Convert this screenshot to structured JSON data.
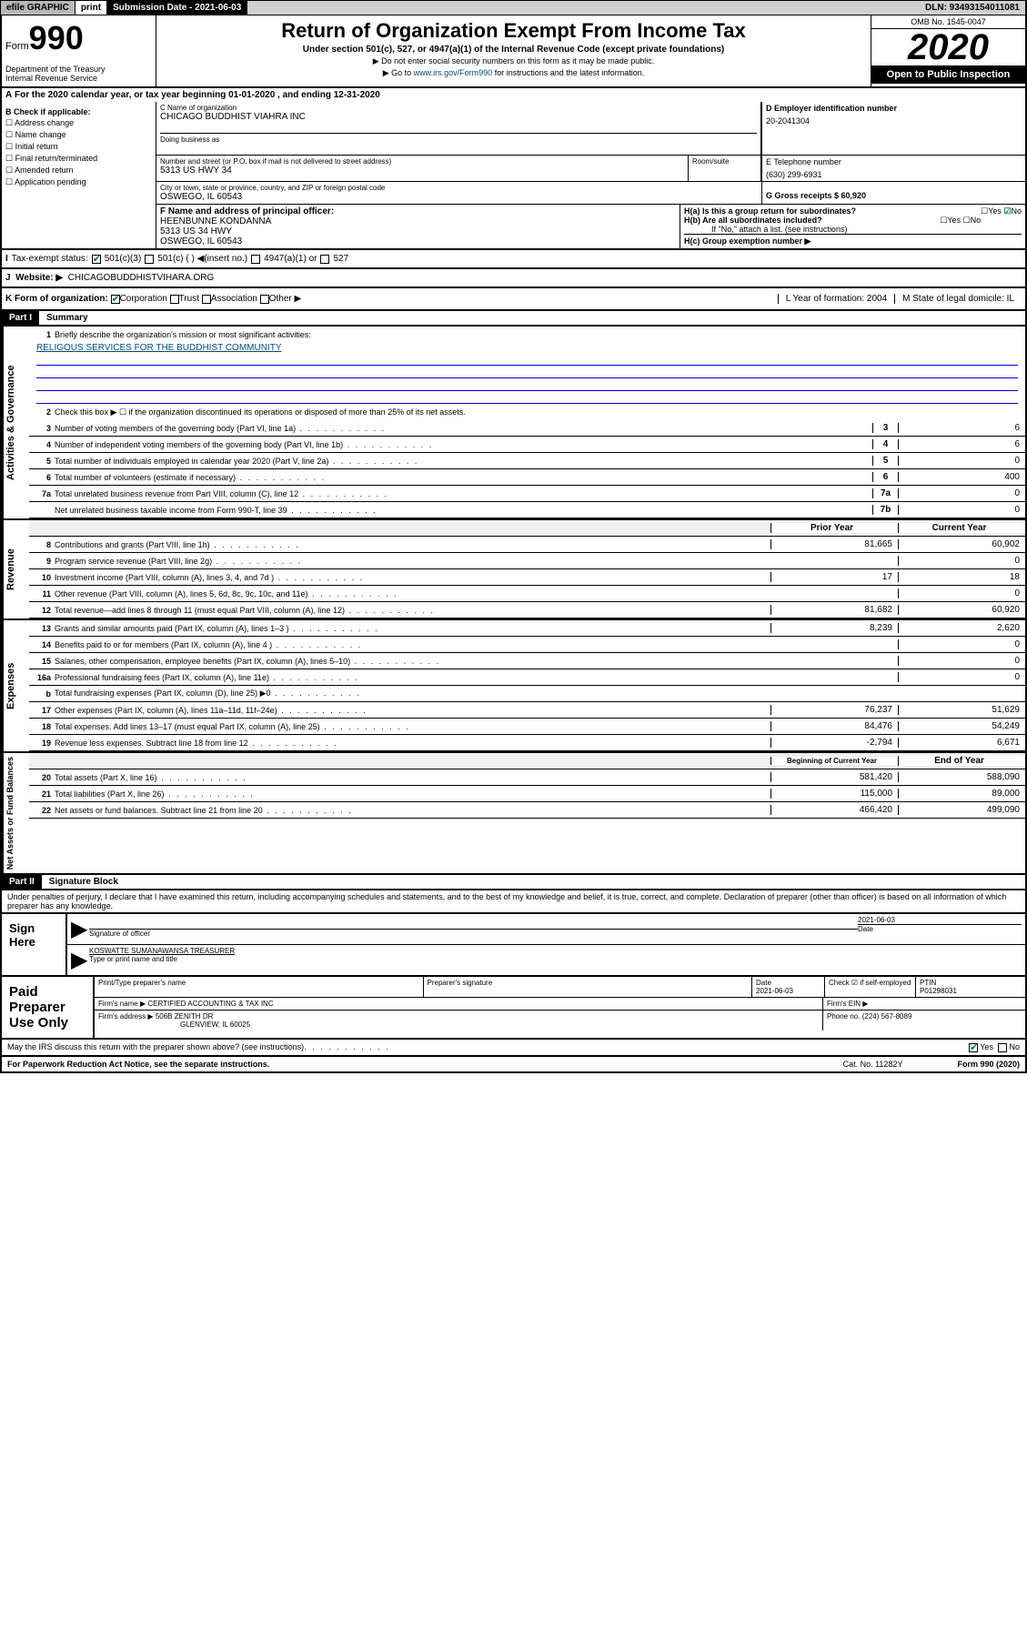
{
  "topbar": {
    "efile": "efile GRAPHIC",
    "print": "print",
    "submission": "Submission Date - 2021-06-03",
    "dln": "DLN: 93493154011081"
  },
  "header": {
    "form_label": "Form",
    "form_num": "990",
    "dept": "Department of the Treasury\nInternal Revenue Service",
    "title": "Return of Organization Exempt From Income Tax",
    "subtitle": "Under section 501(c), 527, or 4947(a)(1) of the Internal Revenue Code (except private foundations)",
    "instr1": "▶ Do not enter social security numbers on this form as it may be made public.",
    "instr2_pre": "▶ Go to ",
    "instr2_link": "www.irs.gov/Form990",
    "instr2_post": " for instructions and the latest information.",
    "omb": "OMB No. 1545-0047",
    "year": "2020",
    "open": "Open to Public Inspection"
  },
  "period": "For the 2020 calendar year, or tax year beginning 01-01-2020   , and ending 12-31-2020",
  "checkboxes": {
    "b_label": "B Check if applicable:",
    "items": [
      "Address change",
      "Name change",
      "Initial return",
      "Final return/terminated",
      "Amended return",
      "Application pending"
    ]
  },
  "entity": {
    "c_name_lbl": "C Name of organization",
    "c_name": "CHICAGO BUDDHIST VIAHRA INC",
    "dba_lbl": "Doing business as",
    "addr_lbl": "Number and street (or P.O. box if mail is not delivered to street address)",
    "addr": "5313 US HWY 34",
    "room_lbl": "Room/suite",
    "city_lbl": "City or town, state or province, country, and ZIP or foreign postal code",
    "city": "OSWEGO, IL 60543",
    "d_lbl": "D Employer identification number",
    "d_ein": "20-2041304",
    "e_lbl": "E Telephone number",
    "e_phone": "(630) 299-6931",
    "g_lbl": "G Gross receipts $ 60,920",
    "f_lbl": "F  Name and address of principal officer:",
    "f_name": "HEENBUNNE KONDANNA",
    "f_addr1": "5313 US 34 HWY",
    "f_addr2": "OSWEGO, IL  60543",
    "ha_lbl": "H(a)  Is this a group return for subordinates?",
    "hb_lbl": "H(b)  Are all subordinates included?",
    "hb_note": "If \"No,\" attach a list. (see instructions)",
    "hc_lbl": "H(c)  Group exemption number ▶"
  },
  "row_i": {
    "label": "Tax-exempt status:",
    "opts": [
      "501(c)(3)",
      "501(c) (   ) ◀(insert no.)",
      "4947(a)(1) or",
      "527"
    ]
  },
  "row_j": {
    "label": "Website: ▶",
    "value": "CHICAGOBUDDHISTVIHARA.ORG"
  },
  "row_k": {
    "label": "K Form of organization:",
    "opts": [
      "Corporation",
      "Trust",
      "Association",
      "Other ▶"
    ],
    "l_lbl": "L Year of formation: 2004",
    "m_lbl": "M State of legal domicile: IL"
  },
  "part1": {
    "hdr": "Part I",
    "title": "Summary",
    "q1": "Briefly describe the organization's mission or most significant activities:",
    "mission": "RELIGOUS SERVICES FOR THE BUDDHIST COMMUNITY",
    "q2": "Check this box ▶ ☐  if the organization discontinued its operations or disposed of more than 25% of its net assets.",
    "lines_gov": [
      {
        "n": "3",
        "d": "Number of voting members of the governing body (Part VI, line 1a)",
        "c": "3",
        "v": "6"
      },
      {
        "n": "4",
        "d": "Number of independent voting members of the governing body (Part VI, line 1b)",
        "c": "4",
        "v": "6"
      },
      {
        "n": "5",
        "d": "Total number of individuals employed in calendar year 2020 (Part V, line 2a)",
        "c": "5",
        "v": "0"
      },
      {
        "n": "6",
        "d": "Total number of volunteers (estimate if necessary)",
        "c": "6",
        "v": "400"
      },
      {
        "n": "7a",
        "d": "Total unrelated business revenue from Part VIII, column (C), line 12",
        "c": "7a",
        "v": "0"
      },
      {
        "n": "",
        "d": "Net unrelated business taxable income from Form 990-T, line 39",
        "c": "7b",
        "v": "0"
      }
    ],
    "prior_hdr": "Prior Year",
    "curr_hdr": "Current Year",
    "lines_rev": [
      {
        "n": "8",
        "d": "Contributions and grants (Part VIII, line 1h)",
        "p": "81,665",
        "c": "60,902"
      },
      {
        "n": "9",
        "d": "Program service revenue (Part VIII, line 2g)",
        "p": "",
        "c": "0"
      },
      {
        "n": "10",
        "d": "Investment income (Part VIII, column (A), lines 3, 4, and 7d )",
        "p": "17",
        "c": "18"
      },
      {
        "n": "11",
        "d": "Other revenue (Part VIII, column (A), lines 5, 6d, 8c, 9c, 10c, and 11e)",
        "p": "",
        "c": "0"
      },
      {
        "n": "12",
        "d": "Total revenue—add lines 8 through 11 (must equal Part VIII, column (A), line 12)",
        "p": "81,682",
        "c": "60,920"
      }
    ],
    "lines_exp": [
      {
        "n": "13",
        "d": "Grants and similar amounts paid (Part IX, column (A), lines 1–3 )",
        "p": "8,239",
        "c": "2,620"
      },
      {
        "n": "14",
        "d": "Benefits paid to or for members (Part IX, column (A), line 4 )",
        "p": "",
        "c": "0"
      },
      {
        "n": "15",
        "d": "Salaries, other compensation, employee benefits (Part IX, column (A), lines 5–10)",
        "p": "",
        "c": "0"
      },
      {
        "n": "16a",
        "d": "Professional fundraising fees (Part IX, column (A), line 11e)",
        "p": "",
        "c": "0"
      },
      {
        "n": "b",
        "d": "Total fundraising expenses (Part IX, column (D), line 25) ▶0",
        "p": "",
        "c": "",
        "grey": true
      },
      {
        "n": "17",
        "d": "Other expenses (Part IX, column (A), lines 11a–11d, 11f–24e)",
        "p": "76,237",
        "c": "51,629"
      },
      {
        "n": "18",
        "d": "Total expenses. Add lines 13–17 (must equal Part IX, column (A), line 25)",
        "p": "84,476",
        "c": "54,249"
      },
      {
        "n": "19",
        "d": "Revenue less expenses. Subtract line 18 from line 12",
        "p": "-2,794",
        "c": "6,671"
      }
    ],
    "beg_hdr": "Beginning of Current Year",
    "end_hdr": "End of Year",
    "lines_net": [
      {
        "n": "20",
        "d": "Total assets (Part X, line 16)",
        "p": "581,420",
        "c": "588,090"
      },
      {
        "n": "21",
        "d": "Total liabilities (Part X, line 26)",
        "p": "115,000",
        "c": "89,000"
      },
      {
        "n": "22",
        "d": "Net assets or fund balances. Subtract line 21 from line 20",
        "p": "466,420",
        "c": "499,090"
      }
    ]
  },
  "part2": {
    "hdr": "Part II",
    "title": "Signature Block",
    "perjury": "Under penalties of perjury, I declare that I have examined this return, including accompanying schedules and statements, and to the best of my knowledge and belief, it is true, correct, and complete. Declaration of preparer (other than officer) is based on all information of which preparer has any knowledge."
  },
  "sign": {
    "label": "Sign Here",
    "sig_lbl": "Signature of officer",
    "date": "2021-06-03",
    "date_lbl": "Date",
    "name": "KOSWATTE SUMANAWANSA  TREASURER",
    "name_lbl": "Type or print name and title"
  },
  "paid": {
    "label": "Paid Preparer Use Only",
    "h1": "Print/Type preparer's name",
    "h2": "Preparer's signature",
    "h3": "Date",
    "h3v": "2021-06-03",
    "h4": "Check ☑ if self-employed",
    "h5": "PTIN",
    "h5v": "P01298031",
    "firm_lbl": "Firm's name    ▶",
    "firm": "CERTIFIED ACCOUNTING & TAX INC",
    "ein_lbl": "Firm's EIN ▶",
    "addr_lbl": "Firm's address ▶",
    "addr1": "506B ZENITH DR",
    "addr2": "GLENVIEW, IL  60025",
    "phone_lbl": "Phone no. (224) 567-8089"
  },
  "discuss": "May the IRS discuss this return with the preparer shown above? (see instructions)",
  "footer": {
    "left": "For Paperwork Reduction Act Notice, see the separate instructions.",
    "mid": "Cat. No. 11282Y",
    "right": "Form 990 (2020)"
  },
  "sidelabels": {
    "gov": "Activities & Governance",
    "rev": "Revenue",
    "exp": "Expenses",
    "net": "Net Assets or Fund Balances"
  }
}
